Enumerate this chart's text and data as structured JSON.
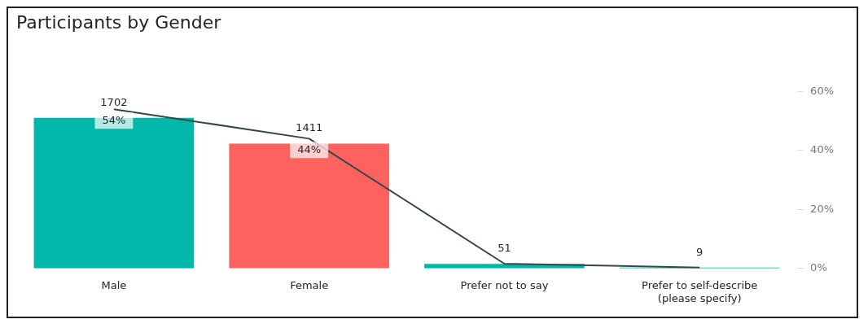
{
  "chart_data": {
    "type": "bar",
    "title": "Participants by Gender",
    "categories": [
      "Male",
      "Female",
      "Prefer not to say",
      "Prefer to self-describe\n(please specify)"
    ],
    "series": [
      {
        "colors": [
          "#01b8aa",
          "#fd625e",
          "#01b8aa",
          "#01b8aa"
        ],
        "values": [
          1702,
          1411,
          51,
          9
        ],
        "data_labels": true
      },
      {
        "type": "line",
        "axis": "y2",
        "color": "#374649",
        "values": [
          54,
          44,
          1.6,
          0.3
        ],
        "value_labels": [
          "54%",
          "44%",
          null,
          null
        ]
      }
    ],
    "y2lim": [
      0,
      60
    ],
    "y2ticks": [
      {
        "value": 0,
        "label": "0%"
      },
      {
        "value": 20,
        "label": "20%"
      },
      {
        "value": 40,
        "label": "40%"
      },
      {
        "value": 60,
        "label": "60%"
      }
    ],
    "grid": false,
    "legend": false,
    "marker": "none"
  }
}
